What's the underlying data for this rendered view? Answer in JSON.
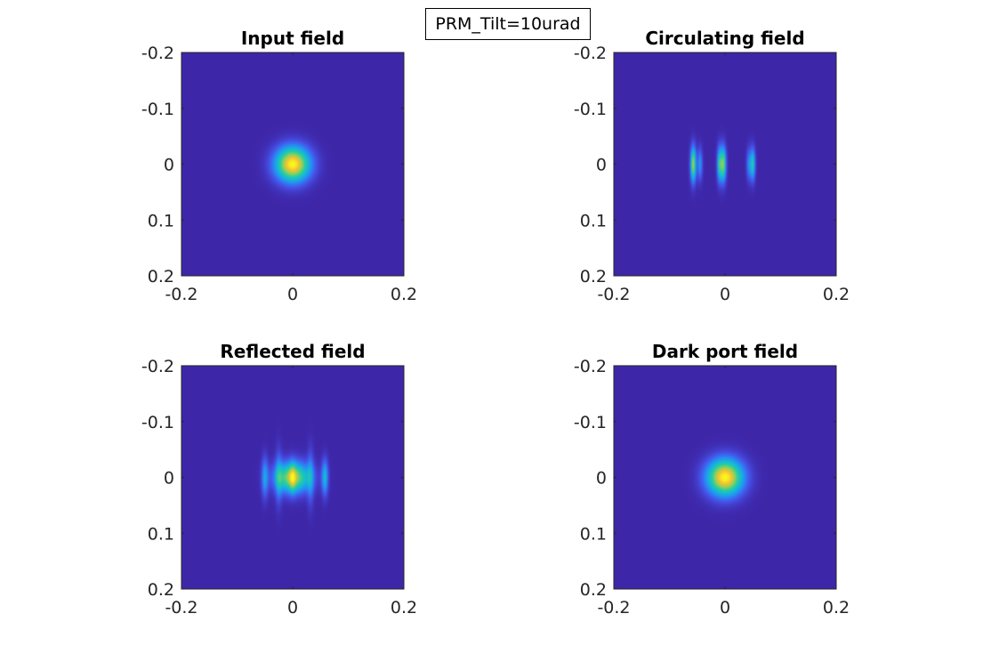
{
  "annotation": "PRM_Tilt=10urad",
  "chart_data": [
    {
      "type": "heatmap",
      "title": "Input field",
      "xlim": [
        -0.2,
        0.2
      ],
      "ylim": [
        -0.2,
        0.2
      ],
      "y_direction": "reversed",
      "xticks": [
        "-0.2",
        "0",
        "0.2"
      ],
      "yticks": [
        "-0.2",
        "-0.1",
        "0",
        "0.1",
        "0.2"
      ],
      "colormap": "parula",
      "pattern": "gaussian-spot",
      "components": [
        {
          "x": 0,
          "y": 0,
          "sx": 0.022,
          "sy": 0.022,
          "amp": 1.0
        }
      ]
    },
    {
      "type": "heatmap",
      "title": "Circulating field",
      "xlim": [
        -0.2,
        0.2
      ],
      "ylim": [
        -0.2,
        0.2
      ],
      "y_direction": "reversed",
      "xticks": [
        "-0.2",
        "0",
        "0.2"
      ],
      "yticks": [
        "-0.2",
        "-0.1",
        "0",
        "0.1",
        "0.2"
      ],
      "colormap": "parula",
      "pattern": "vertical-stripes",
      "components": [
        {
          "x": -0.057,
          "y": 0,
          "sx": 0.0035,
          "sy": 0.022,
          "amp": 0.78
        },
        {
          "x": -0.045,
          "y": 0,
          "sx": 0.003,
          "sy": 0.02,
          "amp": 0.35
        },
        {
          "x": -0.01,
          "y": 0,
          "sx": 0.003,
          "sy": 0.022,
          "amp": 0.55
        },
        {
          "x": -0.003,
          "y": 0,
          "sx": 0.0035,
          "sy": 0.022,
          "amp": 0.7
        },
        {
          "x": 0.043,
          "y": 0,
          "sx": 0.003,
          "sy": 0.02,
          "amp": 0.3
        },
        {
          "x": 0.05,
          "y": 0,
          "sx": 0.003,
          "sy": 0.02,
          "amp": 0.55
        }
      ]
    },
    {
      "type": "heatmap",
      "title": "Reflected field",
      "xlim": [
        -0.2,
        0.2
      ],
      "ylim": [
        -0.2,
        0.2
      ],
      "y_direction": "reversed",
      "xticks": [
        "-0.2",
        "0",
        "0.2"
      ],
      "yticks": [
        "-0.2",
        "-0.1",
        "0",
        "0.1",
        "0.2"
      ],
      "colormap": "parula",
      "pattern": "striped-spot",
      "components": [
        {
          "x": 0,
          "y": 0,
          "sx": 0.022,
          "sy": 0.019,
          "amp": 0.8
        },
        {
          "x": 0.0,
          "y": 0,
          "sx": 0.004,
          "sy": 0.02,
          "amp": 0.25
        },
        {
          "x": -0.05,
          "y": 0,
          "sx": 0.004,
          "sy": 0.025,
          "amp": 0.35
        },
        {
          "x": 0.058,
          "y": 0,
          "sx": 0.004,
          "sy": 0.022,
          "amp": 0.45
        },
        {
          "x": -0.025,
          "y": 0,
          "sx": 0.004,
          "sy": 0.035,
          "amp": 0.25
        },
        {
          "x": 0.032,
          "y": 0,
          "sx": 0.004,
          "sy": 0.035,
          "amp": 0.25
        }
      ]
    },
    {
      "type": "heatmap",
      "title": "Dark port field",
      "xlim": [
        -0.2,
        0.2
      ],
      "ylim": [
        -0.2,
        0.2
      ],
      "y_direction": "reversed",
      "xticks": [
        "-0.2",
        "0",
        "0.2"
      ],
      "yticks": [
        "-0.2",
        "-0.1",
        "0",
        "0.1",
        "0.2"
      ],
      "colormap": "parula",
      "pattern": "gaussian-spot",
      "components": [
        {
          "x": 0,
          "y": 0,
          "sx": 0.023,
          "sy": 0.023,
          "amp": 1.0
        }
      ]
    }
  ]
}
